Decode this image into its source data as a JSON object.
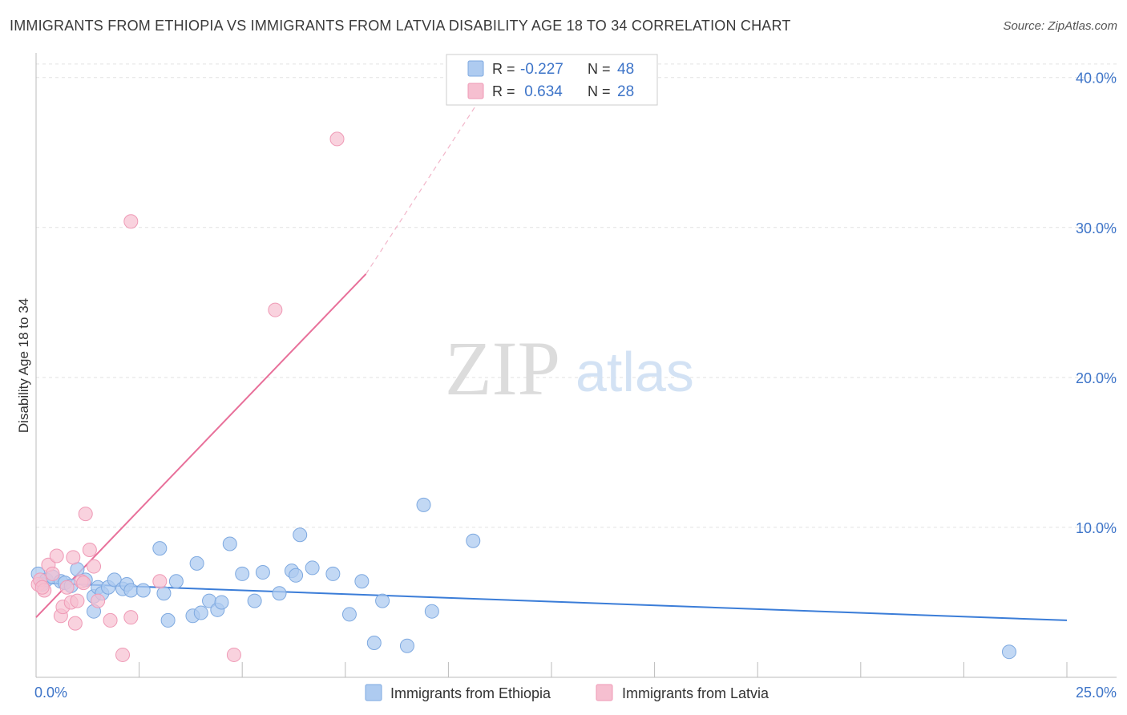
{
  "title": "IMMIGRANTS FROM ETHIOPIA VS IMMIGRANTS FROM LATVIA DISABILITY AGE 18 TO 34 CORRELATION CHART",
  "source": "Source: ZipAtlas.com",
  "watermark": {
    "zip": "ZIP",
    "atlas": "atlas"
  },
  "legend_box": {
    "rows": [
      {
        "r_label": "R = ",
        "r_value": "-0.227",
        "n_label": "N = ",
        "n_value": "48"
      },
      {
        "r_label": "R = ",
        "r_value": " 0.634",
        "n_label": "N = ",
        "n_value": "28"
      }
    ]
  },
  "bottom_legend": {
    "ethiopia": "Immigrants from Ethiopia",
    "latvia": "Immigrants from Latvia"
  },
  "colors": {
    "ethiopia_fill": "#aecbf0",
    "ethiopia_stroke": "#7ea9e0",
    "ethiopia_line": "#3b7dd8",
    "latvia_fill": "#f6bfd0",
    "latvia_stroke": "#ef9ab6",
    "latvia_line": "#e8709a",
    "tick_text": "#3d74c8"
  },
  "chart_data": {
    "type": "scatter",
    "title": "IMMIGRANTS FROM ETHIOPIA VS IMMIGRANTS FROM LATVIA DISABILITY AGE 18 TO 34 CORRELATION CHART",
    "xlabel": "",
    "ylabel": "Disability Age 18 to 34",
    "xlim": [
      0,
      25
    ],
    "ylim": [
      0,
      41
    ],
    "x_tick_labels": [
      "0.0%",
      "25.0%"
    ],
    "y_ticks": [
      10,
      20,
      30,
      40
    ],
    "y_tick_labels": [
      "10.0%",
      "20.0%",
      "30.0%",
      "40.0%"
    ],
    "grid": true,
    "series": [
      {
        "name": "Immigrants from Ethiopia",
        "points": [
          [
            0.05,
            6.9
          ],
          [
            0.15,
            6.2
          ],
          [
            0.25,
            6.5
          ],
          [
            0.4,
            6.7
          ],
          [
            0.6,
            6.4
          ],
          [
            0.7,
            6.3
          ],
          [
            0.85,
            6.1
          ],
          [
            1.0,
            7.2
          ],
          [
            1.2,
            6.5
          ],
          [
            1.4,
            5.4
          ],
          [
            1.5,
            6.0
          ],
          [
            1.6,
            5.6
          ],
          [
            1.75,
            6.0
          ],
          [
            1.9,
            6.5
          ],
          [
            2.1,
            5.9
          ],
          [
            2.2,
            6.2
          ],
          [
            2.3,
            5.8
          ],
          [
            2.6,
            5.8
          ],
          [
            3.0,
            8.6
          ],
          [
            3.1,
            5.6
          ],
          [
            3.4,
            6.4
          ],
          [
            3.9,
            7.6
          ],
          [
            4.2,
            5.1
          ],
          [
            4.4,
            4.5
          ],
          [
            4.5,
            5.0
          ],
          [
            4.7,
            8.9
          ],
          [
            5.0,
            6.9
          ],
          [
            5.3,
            5.1
          ],
          [
            5.5,
            7.0
          ],
          [
            5.9,
            5.6
          ],
          [
            6.2,
            7.1
          ],
          [
            6.3,
            6.8
          ],
          [
            6.4,
            9.5
          ],
          [
            6.7,
            7.3
          ],
          [
            7.2,
            6.9
          ],
          [
            7.6,
            4.2
          ],
          [
            7.9,
            6.4
          ],
          [
            8.2,
            2.3
          ],
          [
            8.4,
            5.1
          ],
          [
            9.0,
            2.1
          ],
          [
            9.4,
            11.5
          ],
          [
            9.6,
            4.4
          ],
          [
            10.6,
            9.1
          ],
          [
            3.2,
            3.8
          ],
          [
            3.8,
            4.1
          ],
          [
            4.0,
            4.3
          ],
          [
            1.4,
            4.4
          ],
          [
            23.6,
            1.7
          ]
        ]
      },
      {
        "name": "Immigrants from Latvia",
        "points": [
          [
            0.05,
            6.2
          ],
          [
            0.1,
            6.5
          ],
          [
            0.2,
            5.8
          ],
          [
            0.3,
            7.5
          ],
          [
            0.4,
            6.9
          ],
          [
            0.5,
            8.1
          ],
          [
            0.6,
            4.1
          ],
          [
            0.65,
            4.7
          ],
          [
            0.75,
            6.0
          ],
          [
            0.85,
            5.0
          ],
          [
            0.9,
            8.0
          ],
          [
            0.95,
            3.6
          ],
          [
            1.0,
            5.1
          ],
          [
            1.1,
            6.4
          ],
          [
            1.2,
            10.9
          ],
          [
            1.3,
            8.5
          ],
          [
            1.4,
            7.4
          ],
          [
            1.5,
            5.1
          ],
          [
            1.8,
            3.8
          ],
          [
            2.1,
            1.5
          ],
          [
            2.3,
            4.0
          ],
          [
            2.3,
            30.4
          ],
          [
            3.0,
            6.4
          ],
          [
            4.8,
            1.5
          ],
          [
            5.8,
            24.5
          ],
          [
            7.3,
            35.9
          ],
          [
            0.15,
            6.0
          ],
          [
            1.15,
            6.3
          ]
        ]
      }
    ],
    "trend_lines": [
      {
        "series": "Immigrants from Ethiopia",
        "x": [
          0,
          25
        ],
        "y": [
          6.3,
          3.8
        ]
      },
      {
        "series": "Immigrants from Latvia",
        "x_solid": [
          0,
          8.0
        ],
        "y_solid": [
          4.0,
          26.9
        ],
        "x_dashed": [
          8.0,
          11.3
        ],
        "y_dashed": [
          26.9,
          40.8
        ]
      }
    ],
    "stats": [
      {
        "series": "Immigrants from Ethiopia",
        "R": -0.227,
        "N": 48
      },
      {
        "series": "Immigrants from Latvia",
        "R": 0.634,
        "N": 28
      }
    ]
  }
}
